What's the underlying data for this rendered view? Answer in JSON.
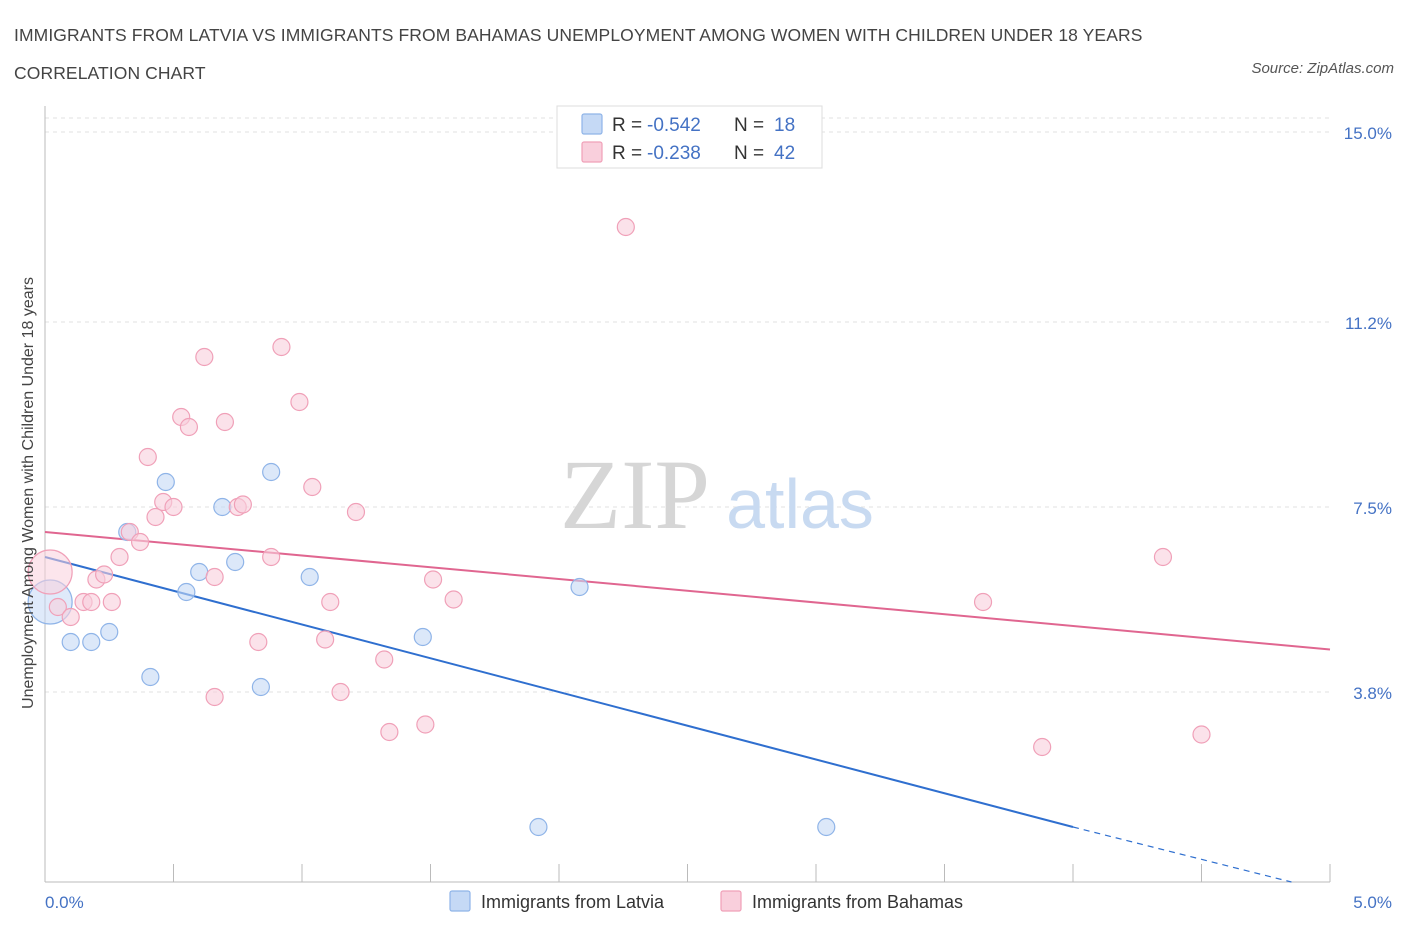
{
  "chart_data": {
    "type": "scatter",
    "title": "IMMIGRANTS FROM LATVIA VS IMMIGRANTS FROM BAHAMAS UNEMPLOYMENT AMONG WOMEN WITH CHILDREN UNDER 18 YEARS CORRELATION CHART",
    "source": "Source: ZipAtlas.com",
    "ylabel": "Unemployment Among Women with Children Under 18 years",
    "xlim": [
      0,
      5
    ],
    "ylim": [
      0,
      15
    ],
    "x_tick_labels": [
      "0.0%",
      "5.0%"
    ],
    "y_ticks": [
      3.8,
      7.5,
      11.2,
      15.0
    ],
    "y_tick_labels": [
      "3.8%",
      "7.5%",
      "11.2%",
      "15.0%"
    ],
    "grid": true,
    "watermark": {
      "zip": "ZIP",
      "atlas": "atlas"
    },
    "legend_position": "top-center",
    "series": [
      {
        "name": "Immigrants from Latvia",
        "color": "#8fb4e8",
        "fill": "#c5d9f5",
        "line_color": "#2f6fcf",
        "r_label": "R =",
        "r_value": "-0.542",
        "n_label": "N =",
        "n_value": "18",
        "trend": {
          "x": [
            0.0,
            4.0
          ],
          "y": [
            6.5,
            1.1
          ]
        },
        "trend_dashed": {
          "x": [
            4.0,
            4.85
          ],
          "y": [
            1.1,
            0.0
          ]
        },
        "points": [
          {
            "x": 0.02,
            "y": 5.6,
            "big": true
          },
          {
            "x": 0.1,
            "y": 4.8
          },
          {
            "x": 0.18,
            "y": 4.8
          },
          {
            "x": 0.25,
            "y": 5.0
          },
          {
            "x": 0.32,
            "y": 7.0
          },
          {
            "x": 0.41,
            "y": 4.1
          },
          {
            "x": 0.47,
            "y": 8.0
          },
          {
            "x": 0.55,
            "y": 5.8
          },
          {
            "x": 0.6,
            "y": 6.2
          },
          {
            "x": 0.69,
            "y": 7.5
          },
          {
            "x": 0.74,
            "y": 6.4
          },
          {
            "x": 0.84,
            "y": 3.9
          },
          {
            "x": 0.88,
            "y": 8.2
          },
          {
            "x": 1.03,
            "y": 6.1
          },
          {
            "x": 1.47,
            "y": 4.9
          },
          {
            "x": 1.92,
            "y": 1.1
          },
          {
            "x": 2.08,
            "y": 5.9
          },
          {
            "x": 3.04,
            "y": 1.1
          }
        ]
      },
      {
        "name": "Immigrants from Bahamas",
        "color": "#f0a0b8",
        "fill": "#f9cfdc",
        "line_color": "#e06690",
        "r_label": "R =",
        "r_value": "-0.238",
        "n_label": "N =",
        "n_value": "42",
        "trend": {
          "x": [
            0.0,
            5.0
          ],
          "y": [
            7.0,
            4.65
          ]
        },
        "points": [
          {
            "x": 0.02,
            "y": 6.2,
            "big": true
          },
          {
            "x": 0.05,
            "y": 5.5
          },
          {
            "x": 0.1,
            "y": 5.3
          },
          {
            "x": 0.15,
            "y": 5.6
          },
          {
            "x": 0.18,
            "y": 5.6
          },
          {
            "x": 0.2,
            "y": 6.05
          },
          {
            "x": 0.23,
            "y": 6.15
          },
          {
            "x": 0.26,
            "y": 5.6
          },
          {
            "x": 0.29,
            "y": 6.5
          },
          {
            "x": 0.33,
            "y": 7.0
          },
          {
            "x": 0.37,
            "y": 6.8
          },
          {
            "x": 0.4,
            "y": 8.5
          },
          {
            "x": 0.43,
            "y": 7.3
          },
          {
            "x": 0.46,
            "y": 7.6
          },
          {
            "x": 0.5,
            "y": 7.5
          },
          {
            "x": 0.53,
            "y": 9.3
          },
          {
            "x": 0.56,
            "y": 9.1
          },
          {
            "x": 0.62,
            "y": 10.5
          },
          {
            "x": 0.66,
            "y": 6.1
          },
          {
            "x": 0.66,
            "y": 3.7
          },
          {
            "x": 0.7,
            "y": 9.2
          },
          {
            "x": 0.75,
            "y": 7.5
          },
          {
            "x": 0.77,
            "y": 7.55
          },
          {
            "x": 0.83,
            "y": 4.8
          },
          {
            "x": 0.88,
            "y": 6.5
          },
          {
            "x": 0.92,
            "y": 10.7
          },
          {
            "x": 0.99,
            "y": 9.6
          },
          {
            "x": 1.04,
            "y": 7.9
          },
          {
            "x": 1.09,
            "y": 4.85
          },
          {
            "x": 1.11,
            "y": 5.6
          },
          {
            "x": 1.15,
            "y": 3.8
          },
          {
            "x": 1.21,
            "y": 7.4
          },
          {
            "x": 1.32,
            "y": 4.45
          },
          {
            "x": 1.34,
            "y": 3.0
          },
          {
            "x": 1.48,
            "y": 3.15
          },
          {
            "x": 1.51,
            "y": 6.05
          },
          {
            "x": 1.59,
            "y": 5.65
          },
          {
            "x": 2.26,
            "y": 13.1
          },
          {
            "x": 3.65,
            "y": 5.6
          },
          {
            "x": 3.88,
            "y": 2.7
          },
          {
            "x": 4.35,
            "y": 6.5
          },
          {
            "x": 4.5,
            "y": 2.95
          }
        ]
      }
    ]
  }
}
